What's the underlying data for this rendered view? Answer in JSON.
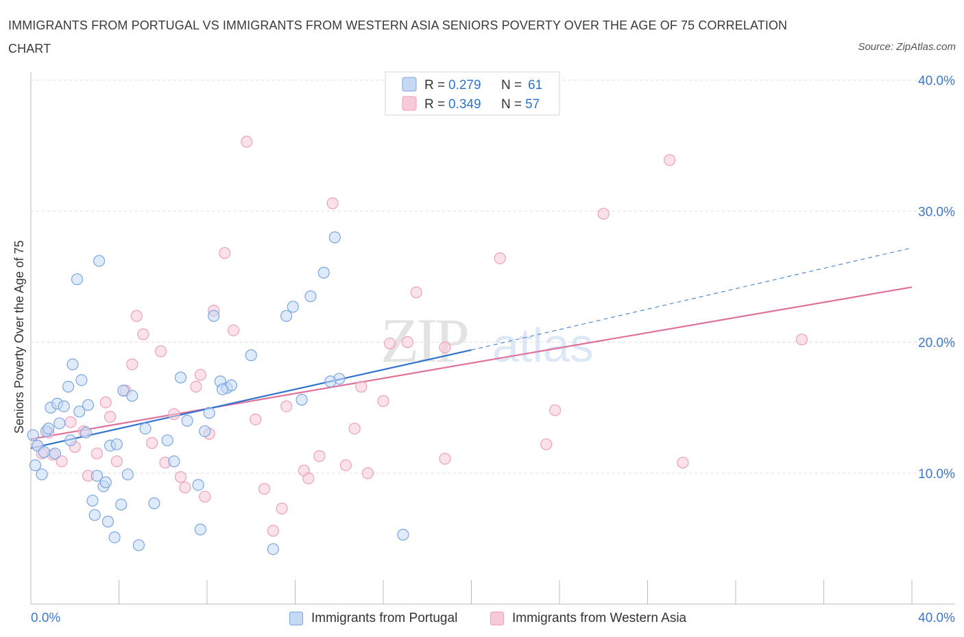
{
  "title": "IMMIGRANTS FROM PORTUGAL VS IMMIGRANTS FROM WESTERN ASIA SENIORS POVERTY OVER THE AGE OF 75 CORRELATION CHART",
  "source": "Source: ZipAtlas.com",
  "watermark": {
    "zip": "ZIP",
    "atlas": "atlas"
  },
  "colors": {
    "blue": "#2f73d0",
    "blue_fill": "#c5d9f5",
    "blue_stroke": "#7aa6e0",
    "pink": "#e0709a",
    "pink_fill": "#f8cad9",
    "pink_stroke": "#ee9fba",
    "axis_label": "#3b78c9",
    "grid": "#dddddd"
  },
  "legend_top": [
    {
      "r_label": "R =",
      "r_value": "0.279",
      "n_label": "N =",
      "n_value": "61"
    },
    {
      "r_label": "R =",
      "r_value": "0.349",
      "n_label": "N =",
      "n_value": "57"
    }
  ],
  "legend_bottom": [
    "Immigrants from Portugal",
    "Immigrants from Western Asia"
  ],
  "chart_data": {
    "type": "scatter",
    "title": "IMMIGRANTS FROM PORTUGAL VS IMMIGRANTS FROM WESTERN ASIA SENIORS POVERTY OVER THE AGE OF 75 CORRELATION CHART",
    "xlabel": "",
    "ylabel": "Seniors Poverty Over the Age of 75",
    "xlim": [
      0,
      40
    ],
    "ylim": [
      0,
      40
    ],
    "x_tick_labels": [
      "0.0%",
      "40.0%"
    ],
    "y_tick_labels": [
      "10.0%",
      "20.0%",
      "30.0%",
      "40.0%"
    ],
    "y_ticks": [
      10,
      20,
      30,
      40
    ],
    "grid": true,
    "legend_position": "top-center",
    "series": [
      {
        "name": "Immigrants from Portugal",
        "R": 0.279,
        "N": 61,
        "trend": {
          "x0": 0,
          "y0": 11.9,
          "x1": 20.0,
          "y1": 19.4,
          "dashed_to_x": 40.0,
          "dashed_to_y": 27.2
        },
        "points": [
          [
            0.1,
            12.9
          ],
          [
            0.2,
            10.6
          ],
          [
            0.3,
            12.1
          ],
          [
            0.5,
            9.9
          ],
          [
            0.6,
            11.6
          ],
          [
            0.7,
            13.2
          ],
          [
            0.8,
            13.4
          ],
          [
            0.9,
            15.0
          ],
          [
            1.1,
            11.5
          ],
          [
            1.2,
            15.3
          ],
          [
            1.3,
            13.8
          ],
          [
            1.5,
            15.1
          ],
          [
            1.7,
            16.6
          ],
          [
            1.8,
            12.5
          ],
          [
            1.9,
            18.3
          ],
          [
            2.1,
            24.8
          ],
          [
            2.2,
            14.7
          ],
          [
            2.3,
            17.1
          ],
          [
            2.5,
            13.1
          ],
          [
            2.6,
            15.2
          ],
          [
            2.8,
            7.9
          ],
          [
            2.9,
            6.8
          ],
          [
            3.0,
            9.8
          ],
          [
            3.1,
            26.2
          ],
          [
            3.3,
            9.0
          ],
          [
            3.4,
            9.3
          ],
          [
            3.5,
            6.3
          ],
          [
            3.6,
            12.1
          ],
          [
            3.8,
            5.1
          ],
          [
            3.9,
            12.2
          ],
          [
            4.1,
            7.6
          ],
          [
            4.2,
            16.3
          ],
          [
            4.4,
            9.9
          ],
          [
            4.6,
            15.9
          ],
          [
            4.9,
            4.5
          ],
          [
            5.2,
            13.4
          ],
          [
            5.6,
            7.7
          ],
          [
            6.2,
            12.5
          ],
          [
            6.5,
            10.9
          ],
          [
            6.8,
            17.3
          ],
          [
            7.1,
            14.0
          ],
          [
            7.6,
            9.1
          ],
          [
            7.7,
            5.7
          ],
          [
            7.9,
            13.2
          ],
          [
            8.1,
            14.6
          ],
          [
            8.3,
            22.0
          ],
          [
            8.6,
            17.0
          ],
          [
            8.9,
            16.5
          ],
          [
            9.1,
            16.7
          ],
          [
            10.0,
            19.0
          ],
          [
            11.0,
            4.2
          ],
          [
            11.6,
            22.0
          ],
          [
            11.9,
            22.7
          ],
          [
            12.3,
            15.6
          ],
          [
            12.7,
            23.5
          ],
          [
            13.3,
            25.3
          ],
          [
            13.8,
            28.0
          ],
          [
            16.9,
            5.3
          ],
          [
            14.0,
            17.2
          ],
          [
            13.6,
            17.0
          ],
          [
            8.7,
            16.4
          ]
        ]
      },
      {
        "name": "Immigrants from Western Asia",
        "R": 0.349,
        "N": 57,
        "trend": {
          "x0": 0,
          "y0": 12.6,
          "x1": 40.0,
          "y1": 24.2
        },
        "points": [
          [
            0.3,
            12.1
          ],
          [
            0.5,
            11.5
          ],
          [
            0.8,
            13.1
          ],
          [
            1.0,
            11.4
          ],
          [
            1.4,
            10.9
          ],
          [
            1.8,
            13.9
          ],
          [
            2.0,
            12.0
          ],
          [
            2.4,
            13.2
          ],
          [
            2.6,
            9.8
          ],
          [
            3.0,
            11.5
          ],
          [
            3.4,
            15.4
          ],
          [
            3.6,
            14.3
          ],
          [
            3.9,
            10.9
          ],
          [
            4.3,
            16.3
          ],
          [
            4.6,
            18.3
          ],
          [
            4.8,
            22.0
          ],
          [
            5.1,
            20.6
          ],
          [
            5.5,
            12.3
          ],
          [
            5.9,
            19.3
          ],
          [
            6.1,
            10.8
          ],
          [
            6.5,
            14.5
          ],
          [
            6.8,
            9.7
          ],
          [
            7.0,
            8.9
          ],
          [
            7.5,
            16.6
          ],
          [
            7.7,
            17.5
          ],
          [
            7.9,
            8.2
          ],
          [
            8.1,
            13.0
          ],
          [
            8.3,
            22.4
          ],
          [
            8.8,
            26.8
          ],
          [
            9.2,
            20.9
          ],
          [
            9.8,
            35.3
          ],
          [
            10.2,
            14.1
          ],
          [
            10.6,
            8.8
          ],
          [
            11.0,
            5.6
          ],
          [
            11.4,
            7.3
          ],
          [
            11.6,
            15.1
          ],
          [
            12.4,
            10.2
          ],
          [
            12.6,
            9.6
          ],
          [
            13.1,
            11.3
          ],
          [
            13.7,
            30.6
          ],
          [
            14.3,
            10.6
          ],
          [
            14.7,
            13.4
          ],
          [
            15.0,
            16.6
          ],
          [
            15.3,
            10.0
          ],
          [
            16.0,
            15.5
          ],
          [
            16.3,
            19.9
          ],
          [
            17.1,
            20.0
          ],
          [
            17.5,
            23.8
          ],
          [
            18.8,
            19.6
          ],
          [
            18.8,
            11.1
          ],
          [
            21.3,
            26.4
          ],
          [
            23.4,
            12.2
          ],
          [
            23.8,
            14.8
          ],
          [
            26.0,
            29.8
          ],
          [
            29.0,
            33.9
          ],
          [
            29.6,
            10.8
          ],
          [
            35.0,
            20.2
          ]
        ]
      }
    ]
  }
}
